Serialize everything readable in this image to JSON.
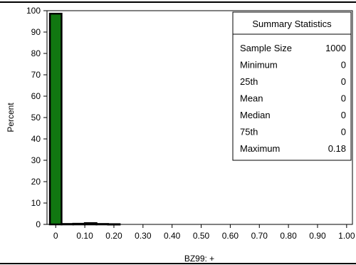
{
  "chart_data": {
    "type": "bar",
    "xlabel": "BZ99: +",
    "ylabel": "Percent",
    "xlim": [
      -0.03,
      1.02
    ],
    "ylim": [
      0,
      100
    ],
    "x_ticks": [
      0,
      0.1,
      0.2,
      0.3,
      0.4,
      0.5,
      0.6,
      0.7,
      0.8,
      0.9,
      1.0
    ],
    "x_tick_labels": [
      "0",
      "0.10",
      "0.20",
      "0.30",
      "0.40",
      "0.50",
      "0.60",
      "0.70",
      "0.80",
      "0.90",
      "1.00"
    ],
    "y_ticks": [
      0,
      10,
      20,
      30,
      40,
      50,
      60,
      70,
      80,
      90,
      100
    ],
    "y_tick_labels": [
      "0",
      "10",
      "20",
      "30",
      "40",
      "50",
      "60",
      "70",
      "80",
      "90",
      "100"
    ],
    "bins": [
      {
        "x0": -0.02,
        "x1": 0.02,
        "value": 98.6,
        "color": "#117711"
      },
      {
        "x0": 0.02,
        "x1": 0.06,
        "value": 0.2,
        "color": "#117711"
      },
      {
        "x0": 0.06,
        "x1": 0.1,
        "value": 0.3,
        "color": "#117711"
      },
      {
        "x0": 0.1,
        "x1": 0.14,
        "value": 0.6,
        "color": "#117711"
      },
      {
        "x0": 0.14,
        "x1": 0.18,
        "value": 0.2,
        "color": "#117711"
      },
      {
        "x0": 0.18,
        "x1": 0.22,
        "value": 0.1,
        "color": "#117711"
      }
    ],
    "grid": false,
    "bar_color": "#117711",
    "bar_edge_color": "#000000"
  },
  "stats": {
    "title": "Summary Statistics",
    "rows": [
      {
        "label": "Sample Size",
        "value": "1000"
      },
      {
        "label": "Minimum",
        "value": "0"
      },
      {
        "label": "25th",
        "value": "0"
      },
      {
        "label": "Mean",
        "value": "0"
      },
      {
        "label": "Median",
        "value": "0"
      },
      {
        "label": "75th",
        "value": "0"
      },
      {
        "label": "Maximum",
        "value": "0.18"
      }
    ]
  }
}
